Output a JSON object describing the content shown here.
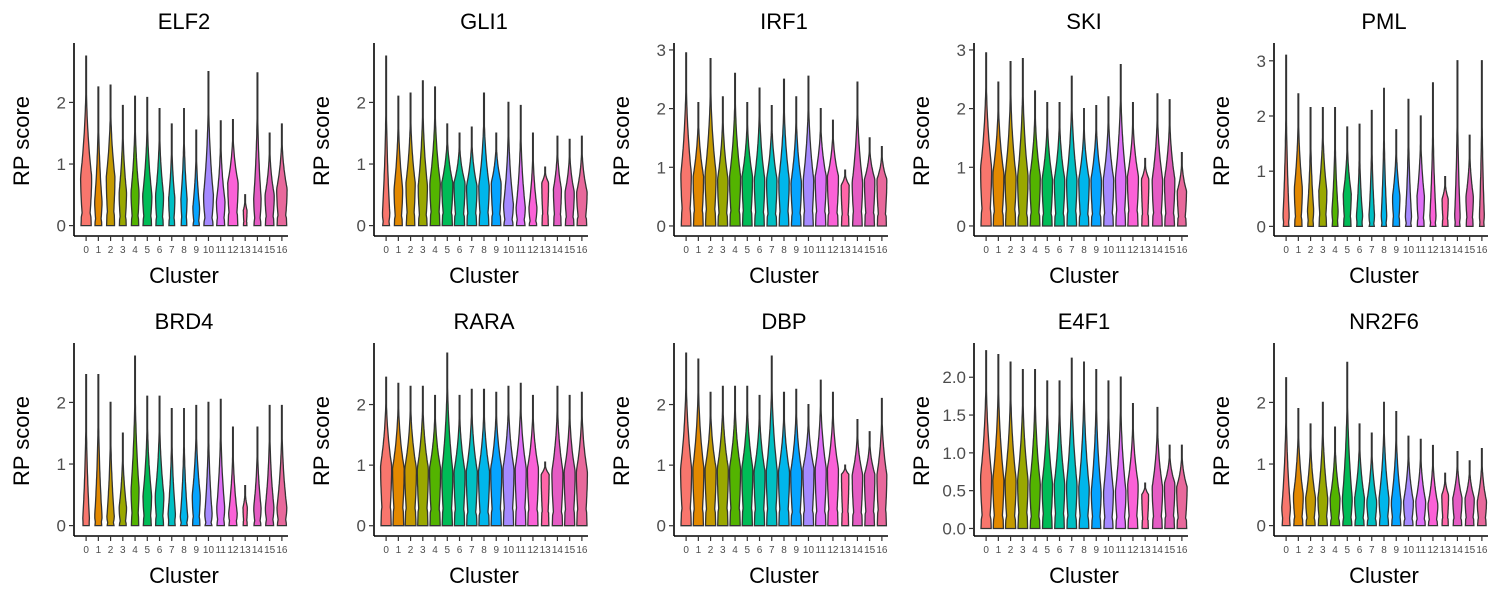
{
  "chart_data": {
    "type": "violin",
    "categories": [
      "0",
      "1",
      "2",
      "3",
      "4",
      "5",
      "6",
      "7",
      "8",
      "9",
      "10",
      "11",
      "12",
      "13",
      "14",
      "15",
      "16"
    ],
    "colors": [
      "#F8766D",
      "#E38900",
      "#C49A00",
      "#99A800",
      "#53B400",
      "#00BC56",
      "#00C094",
      "#00BFC4",
      "#00B6EB",
      "#06A4FF",
      "#A58AFF",
      "#DF70F8",
      "#FB61D7",
      "#FF66A8",
      "#E55CC4",
      "#DE5BB8",
      "#E8689B"
    ],
    "panels": [
      {
        "title": "ELF2",
        "xlabel": "Cluster",
        "ylabel": "RP score",
        "ylim": [
          -0.12,
          2.9
        ],
        "yticks": [
          "0",
          "1",
          "2"
        ],
        "ytick_values": [
          0,
          1,
          2
        ],
        "max": [
          2.75,
          2.25,
          2.28,
          1.95,
          2.1,
          2.08,
          1.9,
          1.65,
          1.9,
          1.55,
          2.5,
          1.7,
          1.72,
          0.5,
          2.48,
          1.5,
          1.65
        ],
        "median": [
          0.8,
          0.4,
          0.8,
          0.55,
          0.55,
          0.5,
          0.5,
          0.45,
          0.45,
          0.3,
          0.5,
          0.4,
          0.7,
          0.25,
          0.45,
          0.5,
          0.6
        ],
        "width": [
          0.9,
          0.6,
          0.7,
          0.6,
          0.65,
          0.75,
          0.65,
          0.5,
          0.5,
          0.55,
          0.8,
          0.7,
          0.85,
          0.3,
          0.6,
          0.75,
          0.85
        ]
      },
      {
        "title": "GLI1",
        "xlabel": "Cluster",
        "ylabel": "RP score",
        "ylim": [
          -0.12,
          2.9
        ],
        "yticks": [
          "0",
          "1",
          "2"
        ],
        "ytick_values": [
          0,
          1,
          2
        ],
        "max": [
          2.75,
          2.1,
          2.15,
          2.35,
          2.25,
          1.65,
          1.5,
          1.6,
          2.15,
          1.5,
          2.0,
          1.95,
          1.5,
          0.95,
          1.45,
          1.4,
          1.45
        ],
        "median": [
          0.2,
          0.6,
          0.7,
          0.65,
          0.7,
          0.7,
          0.7,
          0.65,
          0.65,
          0.7,
          0.35,
          0.3,
          0.3,
          0.7,
          0.6,
          0.55,
          0.55
        ],
        "width": [
          0.6,
          0.7,
          0.75,
          0.75,
          0.85,
          0.9,
          0.9,
          0.85,
          0.85,
          0.8,
          0.8,
          0.75,
          0.65,
          0.55,
          0.65,
          0.75,
          0.85
        ]
      },
      {
        "title": "IRF1",
        "xlabel": "Cluster",
        "ylabel": "RP score",
        "ylim": [
          -0.12,
          3.05
        ],
        "yticks": [
          "0",
          "1",
          "2",
          "3"
        ],
        "ytick_values": [
          0,
          1,
          2,
          3
        ],
        "max": [
          2.95,
          2.1,
          2.85,
          2.2,
          2.6,
          2.1,
          2.35,
          2.05,
          2.5,
          2.2,
          2.55,
          2.0,
          1.8,
          0.95,
          2.45,
          1.5,
          1.35
        ],
        "median": [
          0.9,
          0.85,
          0.9,
          0.8,
          0.85,
          0.85,
          0.8,
          0.8,
          0.8,
          0.75,
          0.8,
          0.85,
          0.85,
          0.7,
          0.75,
          0.8,
          0.8
        ],
        "width": [
          0.85,
          0.85,
          0.9,
          0.85,
          0.9,
          0.85,
          0.85,
          0.85,
          0.85,
          0.85,
          0.85,
          0.9,
          0.9,
          0.65,
          0.85,
          0.85,
          0.8
        ]
      },
      {
        "title": "SKI",
        "xlabel": "Cluster",
        "ylabel": "RP score",
        "ylim": [
          -0.12,
          3.05
        ],
        "yticks": [
          "0",
          "1",
          "2",
          "3"
        ],
        "ytick_values": [
          0,
          1,
          2,
          3
        ],
        "max": [
          2.95,
          2.45,
          2.8,
          2.85,
          2.3,
          2.1,
          2.1,
          2.55,
          2.0,
          2.05,
          2.2,
          2.75,
          2.1,
          1.15,
          2.25,
          2.15,
          1.25
        ],
        "median": [
          1.0,
          0.9,
          0.85,
          0.85,
          0.85,
          0.8,
          0.8,
          0.8,
          0.8,
          0.8,
          0.8,
          0.85,
          0.85,
          0.8,
          0.8,
          0.8,
          0.6
        ],
        "width": [
          0.9,
          0.9,
          0.9,
          0.85,
          0.85,
          0.85,
          0.85,
          0.85,
          0.85,
          0.85,
          0.85,
          0.85,
          0.9,
          0.6,
          0.85,
          0.85,
          0.75
        ]
      },
      {
        "title": "PML",
        "xlabel": "Cluster",
        "ylabel": "RP score",
        "ylim": [
          -0.12,
          3.25
        ],
        "yticks": [
          "0",
          "1",
          "2",
          "3"
        ],
        "ytick_values": [
          0,
          1,
          2,
          3
        ],
        "max": [
          3.1,
          2.4,
          2.15,
          2.15,
          2.15,
          1.8,
          1.85,
          2.1,
          2.5,
          1.75,
          2.3,
          2.0,
          2.6,
          0.9,
          3.0,
          1.65,
          3.0
        ],
        "median": [
          0.2,
          0.7,
          0.3,
          0.65,
          0.3,
          0.6,
          0.2,
          0.2,
          0.2,
          0.55,
          0.2,
          0.55,
          0.2,
          0.5,
          0.2,
          0.55,
          0.2
        ],
        "width": [
          0.5,
          0.65,
          0.5,
          0.65,
          0.5,
          0.65,
          0.5,
          0.45,
          0.45,
          0.6,
          0.5,
          0.6,
          0.5,
          0.5,
          0.45,
          0.6,
          0.4
        ]
      },
      {
        "title": "BRD4",
        "xlabel": "Cluster",
        "ylabel": "RP score",
        "ylim": [
          -0.12,
          2.9
        ],
        "yticks": [
          "0",
          "1",
          "2"
        ],
        "ytick_values": [
          0,
          1,
          2
        ],
        "max": [
          2.45,
          2.45,
          2.0,
          1.5,
          2.75,
          2.1,
          2.1,
          1.9,
          1.9,
          1.95,
          2.0,
          2.05,
          1.6,
          0.65,
          1.6,
          1.95,
          1.95
        ],
        "median": [
          0.1,
          0.15,
          0.15,
          0.3,
          0.6,
          0.5,
          0.5,
          0.2,
          0.15,
          0.5,
          0.2,
          0.3,
          0.2,
          0.3,
          0.3,
          0.3,
          0.3
        ],
        "width": [
          0.55,
          0.6,
          0.6,
          0.6,
          0.65,
          0.7,
          0.7,
          0.6,
          0.6,
          0.65,
          0.6,
          0.65,
          0.7,
          0.35,
          0.6,
          0.7,
          0.8
        ]
      },
      {
        "title": "RARA",
        "xlabel": "Cluster",
        "ylabel": "RP score",
        "ylim": [
          -0.12,
          2.95
        ],
        "yticks": [
          "0",
          "1",
          "2"
        ],
        "ytick_values": [
          0,
          1,
          2
        ],
        "max": [
          2.45,
          2.35,
          2.3,
          2.3,
          2.15,
          2.85,
          2.15,
          2.25,
          2.25,
          2.2,
          2.3,
          2.35,
          2.15,
          1.05,
          2.3,
          2.15,
          2.2
        ],
        "median": [
          1.0,
          0.95,
          0.95,
          0.95,
          0.95,
          0.9,
          0.9,
          0.9,
          0.9,
          0.95,
          0.95,
          0.95,
          0.95,
          0.85,
          0.9,
          0.9,
          0.9
        ],
        "width": [
          0.9,
          0.95,
          0.95,
          0.9,
          0.9,
          0.9,
          0.9,
          0.9,
          0.9,
          0.9,
          0.9,
          0.9,
          0.9,
          0.65,
          0.9,
          0.9,
          0.9
        ]
      },
      {
        "title": "DBP",
        "xlabel": "Cluster",
        "ylabel": "RP score",
        "ylim": [
          -0.12,
          2.95
        ],
        "yticks": [
          "0",
          "1",
          "2"
        ],
        "ytick_values": [
          0,
          1,
          2
        ],
        "max": [
          2.85,
          2.75,
          2.2,
          2.3,
          2.3,
          2.3,
          2.15,
          2.8,
          2.2,
          2.25,
          2.0,
          2.4,
          2.2,
          1.0,
          1.75,
          1.55,
          2.1
        ],
        "median": [
          0.95,
          0.95,
          0.95,
          0.95,
          0.95,
          0.95,
          0.9,
          0.9,
          0.9,
          0.9,
          0.95,
          0.95,
          0.95,
          0.85,
          0.85,
          0.85,
          0.85
        ],
        "width": [
          0.9,
          0.9,
          0.9,
          0.9,
          0.9,
          0.9,
          0.9,
          0.9,
          0.9,
          0.9,
          0.9,
          0.9,
          0.9,
          0.6,
          0.85,
          0.85,
          0.8
        ]
      },
      {
        "title": "E4F1",
        "xlabel": "Cluster",
        "ylabel": "RP score",
        "ylim": [
          -0.06,
          2.4
        ],
        "yticks": [
          "0.0",
          "0.5",
          "1.0",
          "1.5",
          "2.0"
        ],
        "ytick_values": [
          0,
          0.5,
          1,
          1.5,
          2
        ],
        "max": [
          2.35,
          2.3,
          2.2,
          2.1,
          2.1,
          1.95,
          1.95,
          2.25,
          2.2,
          2.1,
          1.95,
          2.0,
          1.65,
          0.6,
          1.6,
          1.1,
          1.1
        ],
        "median": [
          0.7,
          0.65,
          0.65,
          0.65,
          0.6,
          0.6,
          0.6,
          0.6,
          0.55,
          0.5,
          0.5,
          0.5,
          0.6,
          0.45,
          0.55,
          0.6,
          0.55
        ],
        "width": [
          0.9,
          0.9,
          0.9,
          0.85,
          0.85,
          0.85,
          0.85,
          0.85,
          0.85,
          0.8,
          0.8,
          0.85,
          0.85,
          0.55,
          0.85,
          0.85,
          0.85
        ]
      },
      {
        "title": "NR2F6",
        "xlabel": "Cluster",
        "ylabel": "RP score",
        "ylim": [
          -0.12,
          2.9
        ],
        "yticks": [
          "0",
          "1",
          "2"
        ],
        "ytick_values": [
          0,
          1,
          2
        ],
        "max": [
          2.4,
          1.9,
          1.65,
          2.0,
          1.6,
          2.65,
          1.65,
          1.5,
          2.0,
          1.85,
          1.45,
          1.4,
          1.3,
          0.85,
          1.2,
          1.05,
          1.25
        ],
        "median": [
          0.3,
          0.5,
          0.45,
          0.45,
          0.45,
          0.45,
          0.45,
          0.4,
          0.45,
          0.4,
          0.4,
          0.4,
          0.35,
          0.5,
          0.45,
          0.45,
          0.4
        ],
        "width": [
          0.7,
          0.8,
          0.8,
          0.8,
          0.8,
          0.8,
          0.8,
          0.8,
          0.8,
          0.8,
          0.8,
          0.8,
          0.8,
          0.55,
          0.75,
          0.75,
          0.75
        ]
      }
    ]
  }
}
